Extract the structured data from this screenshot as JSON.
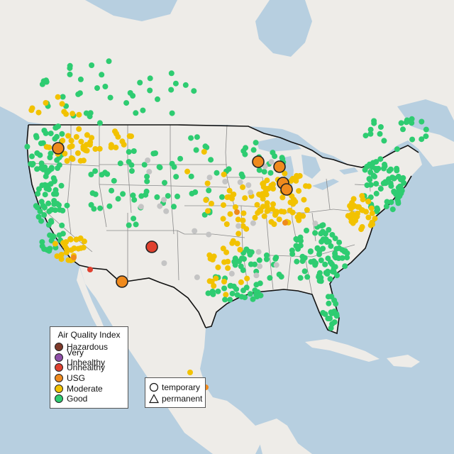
{
  "legend": {
    "title": "Air Quality Index",
    "categories": [
      {
        "label": "Hazardous",
        "color": "#7e3a2a"
      },
      {
        "label": "Very Unhealthy",
        "color": "#8f4fa8"
      },
      {
        "label": "Unhealthy",
        "color": "#e0412f"
      },
      {
        "label": "USG",
        "color": "#ef8a1d"
      },
      {
        "label": "Moderate",
        "color": "#f2c200"
      },
      {
        "label": "Good",
        "color": "#2ecc71"
      }
    ]
  },
  "monitor_legend": {
    "items": [
      {
        "label": "temporary",
        "symbol": "circle-icon"
      },
      {
        "label": "permanent",
        "symbol": "triangle-icon"
      }
    ]
  },
  "colors": {
    "water": "#b7cfe0",
    "land": "#eeece8",
    "land_detail": "#e3ddd6",
    "state_border": "#8a8a8a",
    "country_border": "#111111",
    "no_data": "#c4c4c4"
  }
}
